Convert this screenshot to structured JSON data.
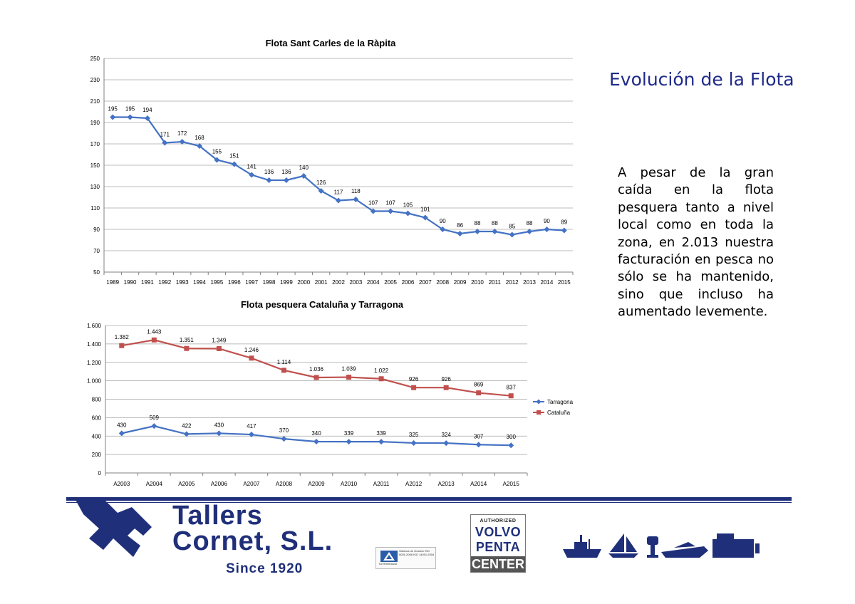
{
  "header": {
    "title": "Evolución de la Flota",
    "body": "A pesar de la gran caída en la flota pesquera tanto a nivel local como en toda la zona, en 2.013 nuestra facturación en pesca no sólo se ha mantenido, sino que incluso ha aumentado levemente."
  },
  "colors": {
    "blue_series": "#4472c4",
    "red_series": "#c0504d",
    "brand": "#1f2f7a",
    "title": "#1f2a8a"
  },
  "chart_data": [
    {
      "type": "line",
      "title": "Flota Sant Carles de la Ràpita",
      "xlabel": "",
      "ylabel": "",
      "ylim": [
        50,
        250
      ],
      "yticks": [
        50,
        70,
        90,
        110,
        130,
        150,
        170,
        190,
        210,
        230,
        250
      ],
      "ytick_labels": [
        "50",
        "70",
        "90",
        "110",
        "130",
        "150",
        "170",
        "190",
        "210",
        "230",
        "250"
      ],
      "grid": true,
      "legend": "none",
      "categories": [
        "1989",
        "1990",
        "1991",
        "1992",
        "1993",
        "1994",
        "1995",
        "1996",
        "1997",
        "1998",
        "1999",
        "2000",
        "2001",
        "2002",
        "2003",
        "2004",
        "2005",
        "2006",
        "2007",
        "2008",
        "2009",
        "2010",
        "2011",
        "2012",
        "2013",
        "2014",
        "2015"
      ],
      "series": [
        {
          "name": "Flota",
          "color": "#4472c4",
          "marker": "diamond",
          "values": [
            195,
            195,
            194,
            171,
            172,
            168,
            155,
            151,
            141,
            136,
            136,
            140,
            126,
            117,
            118,
            107,
            107,
            105,
            101,
            90,
            86,
            88,
            88,
            85,
            88,
            90,
            89
          ],
          "labels": [
            "195",
            "195",
            "194",
            "171",
            "172",
            "168",
            "155",
            "151",
            "141",
            "136",
            "136",
            "140",
            "126",
            "117",
            "118",
            "107",
            "107",
            "105",
            "101",
            "90",
            "86",
            "88",
            "88",
            "85",
            "88",
            "90",
            "89"
          ]
        }
      ]
    },
    {
      "type": "line",
      "title": "Flota pesquera Cataluña y Tarragona",
      "xlabel": "",
      "ylabel": "",
      "ylim": [
        0,
        1600
      ],
      "yticks": [
        0,
        200,
        400,
        600,
        800,
        1000,
        1200,
        1400,
        1600
      ],
      "ytick_labels": [
        "0",
        "200",
        "400",
        "600",
        "800",
        "1.000",
        "1.200",
        "1.400",
        "1.600"
      ],
      "grid": true,
      "legend": "right",
      "categories": [
        "A2003",
        "A2004",
        "A2005",
        "A2006",
        "A2007",
        "A2008",
        "A2009",
        "A2010",
        "A2011",
        "A2012",
        "A2013",
        "A2014",
        "A2015"
      ],
      "series": [
        {
          "name": "Tarragona",
          "color": "#4472c4",
          "marker": "diamond",
          "values": [
            430,
            509,
            422,
            430,
            417,
            370,
            340,
            339,
            339,
            325,
            324,
            307,
            300
          ],
          "labels": [
            "430",
            "509",
            "422",
            "430",
            "417",
            "370",
            "340",
            "339",
            "339",
            "325",
            "324",
            "307",
            "300"
          ]
        },
        {
          "name": "Cataluña",
          "color": "#c0504d",
          "marker": "square",
          "values": [
            1382,
            1443,
            1351,
            1349,
            1246,
            1114,
            1036,
            1039,
            1022,
            926,
            926,
            869,
            837
          ],
          "labels": [
            "1.382",
            "1.443",
            "1.351",
            "1.349",
            "1.246",
            "1.114",
            "1.036",
            "1.039",
            "1.022",
            "926",
            "926",
            "869",
            "837"
          ]
        }
      ]
    }
  ],
  "footer": {
    "company_line1": "Tallers",
    "company_line2": "Cornet, S.L.",
    "since": "Since 1920",
    "cert_text": "Sistema de Gestión ISO 9001:2008 ISO 14001:2004",
    "cert_label": "TÜVRheinland",
    "vp_authorized": "AUTHORIZED",
    "vp_brand1": "VOLVO",
    "vp_brand2": "PENTA",
    "vp_center": "CENTER"
  }
}
